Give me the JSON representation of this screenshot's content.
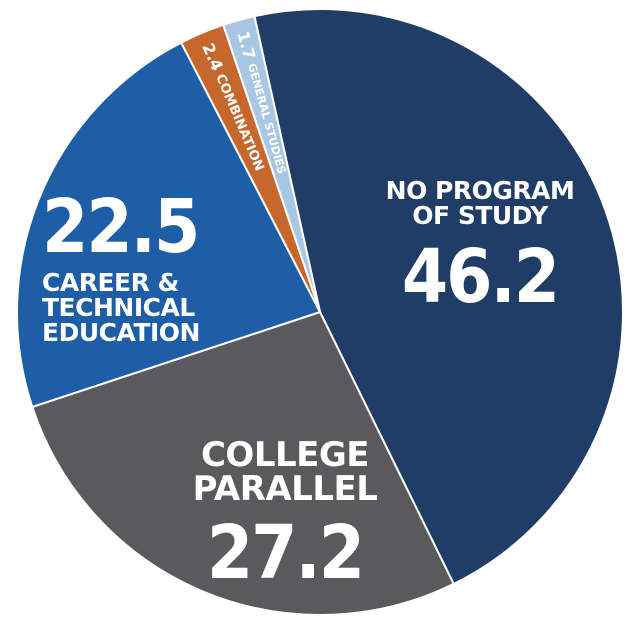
{
  "chart_data": {
    "type": "pie",
    "categories": [
      "NO PROGRAM OF STUDY",
      "COLLEGE PARALLEL",
      "CAREER & TECHNICAL EDUCATION",
      "COMBINATION",
      "GENERAL STUDIES"
    ],
    "values": [
      46.2,
      27.2,
      22.5,
      2.4,
      1.7
    ],
    "colors": [
      "#1f3d66",
      "#5a5a5c",
      "#1e5ea6",
      "#c6682c",
      "#a8c7e4"
    ]
  }
}
